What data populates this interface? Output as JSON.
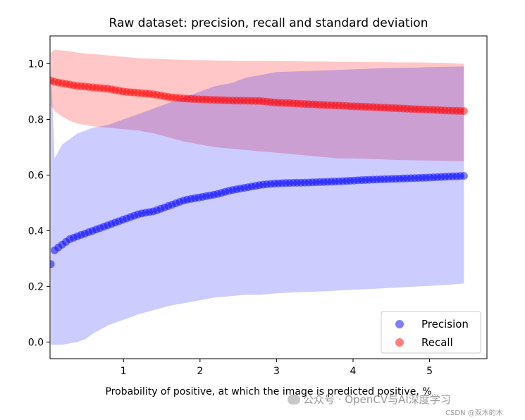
{
  "chart_data": {
    "type": "line",
    "title": "Raw dataset: precision, recall and standard deviation",
    "xlabel": "Probability of positive, at which the image is predicted positive, %",
    "ylabel": "",
    "xlim": [
      0.04,
      5.75
    ],
    "ylim": [
      -0.06,
      1.1
    ],
    "xticks": [
      1,
      2,
      3,
      4,
      5
    ],
    "yticks": [
      0.0,
      0.2,
      0.4,
      0.6,
      0.8,
      1.0
    ],
    "xtick_labels": [
      "1",
      "2",
      "3",
      "4",
      "5"
    ],
    "ytick_labels": [
      "0.0",
      "0.2",
      "0.4",
      "0.6",
      "0.8",
      "1.0"
    ],
    "legend": {
      "position": "lower right",
      "entries": [
        {
          "label": "Precision",
          "color": "#0000ff"
        },
        {
          "label": "Recall",
          "color": "#ff0000"
        }
      ]
    },
    "series": [
      {
        "name": "Precision",
        "color": "#0000ff",
        "band_color": "#b8bdfa",
        "marker": "o",
        "x": [
          0.05,
          0.1,
          0.2,
          0.3,
          0.4,
          0.5,
          0.6,
          0.8,
          1.0,
          1.2,
          1.4,
          1.6,
          1.8,
          2.0,
          2.2,
          2.4,
          2.6,
          2.8,
          3.0,
          3.2,
          3.4,
          3.6,
          3.8,
          4.0,
          4.2,
          4.4,
          4.6,
          4.8,
          5.0,
          5.2,
          5.45
        ],
        "y": [
          0.28,
          0.33,
          0.35,
          0.37,
          0.38,
          0.39,
          0.4,
          0.42,
          0.44,
          0.46,
          0.47,
          0.49,
          0.51,
          0.52,
          0.53,
          0.545,
          0.555,
          0.565,
          0.57,
          0.572,
          0.573,
          0.575,
          0.577,
          0.58,
          0.583,
          0.585,
          0.587,
          0.589,
          0.591,
          0.594,
          0.597
        ],
        "upper": [
          1.0,
          0.66,
          0.71,
          0.73,
          0.75,
          0.76,
          0.77,
          0.78,
          0.8,
          0.82,
          0.84,
          0.86,
          0.88,
          0.9,
          0.92,
          0.93,
          0.95,
          0.96,
          0.97,
          0.972,
          0.974,
          0.976,
          0.978,
          0.98,
          0.982,
          0.984,
          0.985,
          0.986,
          0.988,
          0.989,
          0.99
        ],
        "lower": [
          -0.01,
          -0.01,
          -0.01,
          -0.005,
          0.0,
          0.01,
          0.03,
          0.06,
          0.08,
          0.1,
          0.115,
          0.13,
          0.14,
          0.15,
          0.16,
          0.165,
          0.17,
          0.17,
          0.175,
          0.178,
          0.18,
          0.182,
          0.185,
          0.188,
          0.19,
          0.193,
          0.196,
          0.199,
          0.202,
          0.205,
          0.21
        ]
      },
      {
        "name": "Recall",
        "color": "#ff0000",
        "band_color": "#f7b4b4",
        "marker": "o",
        "x": [
          0.05,
          0.1,
          0.2,
          0.3,
          0.4,
          0.5,
          0.6,
          0.8,
          1.0,
          1.2,
          1.4,
          1.6,
          1.8,
          2.0,
          2.2,
          2.4,
          2.6,
          2.8,
          3.0,
          3.2,
          3.4,
          3.6,
          3.8,
          4.0,
          4.2,
          4.4,
          4.6,
          4.8,
          5.0,
          5.2,
          5.45
        ],
        "y": [
          0.94,
          0.935,
          0.93,
          0.925,
          0.92,
          0.918,
          0.915,
          0.91,
          0.9,
          0.895,
          0.89,
          0.88,
          0.875,
          0.872,
          0.87,
          0.868,
          0.867,
          0.866,
          0.86,
          0.858,
          0.855,
          0.852,
          0.85,
          0.847,
          0.845,
          0.842,
          0.84,
          0.837,
          0.835,
          0.832,
          0.83
        ],
        "upper": [
          1.04,
          1.05,
          1.048,
          1.045,
          1.04,
          1.037,
          1.035,
          1.03,
          1.025,
          1.02,
          1.018,
          1.016,
          1.014,
          1.013,
          1.012,
          1.011,
          1.01,
          1.01,
          1.01,
          1.009,
          1.008,
          1.008,
          1.007,
          1.007,
          1.006,
          1.006,
          1.005,
          1.005,
          1.004,
          1.003,
          1.0
        ],
        "lower": [
          0.85,
          0.83,
          0.81,
          0.795,
          0.785,
          0.78,
          0.775,
          0.77,
          0.765,
          0.76,
          0.75,
          0.735,
          0.72,
          0.71,
          0.7,
          0.695,
          0.69,
          0.685,
          0.68,
          0.675,
          0.67,
          0.665,
          0.66,
          0.66,
          0.658,
          0.656,
          0.654,
          0.653,
          0.652,
          0.651,
          0.65
        ]
      }
    ]
  },
  "watermark": {
    "text": "公众号 · OpenCV与AI深度学习",
    "icon": "wechat-icon"
  },
  "credit": "CSDN @双木的木"
}
